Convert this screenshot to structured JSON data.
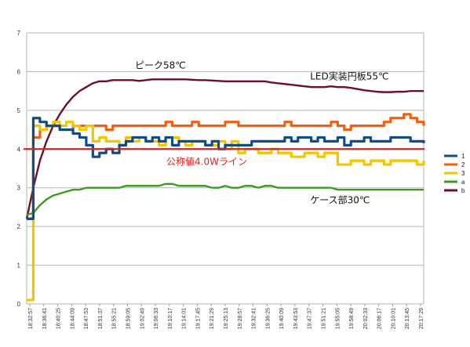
{
  "chart_data": {
    "type": "line",
    "title": "",
    "xlabel": "",
    "ylabel": "",
    "ylim": [
      0,
      7
    ],
    "yticks": [
      "0",
      "1",
      "2",
      "3",
      "4",
      "5",
      "6",
      "7"
    ],
    "grid": true,
    "legend_position": "right",
    "x_tick_labels": [
      "18:32:57",
      "18:36:41",
      "18:40:25",
      "18:44:09",
      "18:47:53",
      "18:51:37",
      "18:55:21",
      "18:59:05",
      "19:02:49",
      "19:06:33",
      "19:10:17",
      "19:14:01",
      "19:17:45",
      "19:21:29",
      "19:25:13",
      "19:28:57",
      "19:32:41",
      "19:36:25",
      "19:40:09",
      "19:43:53",
      "19:47:37",
      "19:51:21",
      "19:55:05",
      "19:58:49",
      "20:02:33",
      "20:06:17",
      "20:10:01",
      "20:13:45",
      "20:17:29"
    ],
    "series": [
      {
        "name": "1",
        "color": "#0e4c8a",
        "values": [
          2.2,
          4.8,
          4.7,
          4.6,
          4.6,
          4.5,
          4.5,
          4.4,
          4.3,
          4.1,
          3.8,
          3.9,
          4.0,
          3.9,
          4.1,
          4.2,
          4.3,
          4.3,
          4.2,
          4.3,
          4.2,
          4.3,
          4.1,
          4.2,
          4.2,
          4.2,
          4.2,
          4.1,
          4.2,
          4.0,
          4.1,
          4.1,
          4.1,
          4.1,
          4.2,
          4.2,
          4.2,
          4.2,
          4.2,
          4.3,
          4.2,
          4.3,
          4.3,
          4.2,
          4.3,
          4.2,
          4.2,
          4.3,
          4.1,
          4.2,
          4.2,
          4.3,
          4.2,
          4.2,
          4.2,
          4.3,
          4.3,
          4.3,
          4.2,
          4.2,
          4.15
        ]
      },
      {
        "name": "2",
        "color": "#f06010",
        "values": [
          2.2,
          4.3,
          4.5,
          4.6,
          4.6,
          4.5,
          4.5,
          4.6,
          4.6,
          4.6,
          4.6,
          4.6,
          4.5,
          4.6,
          4.6,
          4.6,
          4.6,
          4.6,
          4.6,
          4.6,
          4.6,
          4.7,
          4.6,
          4.6,
          4.6,
          4.7,
          4.6,
          4.6,
          4.6,
          4.6,
          4.7,
          4.7,
          4.6,
          4.6,
          4.6,
          4.6,
          4.6,
          4.6,
          4.6,
          4.7,
          4.6,
          4.6,
          4.6,
          4.6,
          4.6,
          4.6,
          4.7,
          4.6,
          4.5,
          4.6,
          4.6,
          4.6,
          4.6,
          4.6,
          4.7,
          4.8,
          4.8,
          4.9,
          4.8,
          4.7,
          4.6
        ]
      },
      {
        "name": "3",
        "color": "#f4c400",
        "values": [
          0.1,
          4.6,
          4.5,
          4.6,
          4.7,
          4.6,
          4.7,
          4.6,
          4.5,
          4.6,
          4.2,
          4.3,
          4.2,
          4.2,
          4.1,
          4.3,
          4.2,
          4.3,
          4.2,
          4.2,
          4.1,
          4.3,
          4.3,
          4.2,
          4.1,
          4.2,
          4.2,
          4.1,
          4.1,
          4.2,
          4.0,
          4.2,
          3.9,
          4.0,
          4.0,
          3.9,
          3.9,
          4.0,
          3.9,
          3.9,
          3.8,
          3.8,
          3.9,
          3.9,
          3.8,
          3.9,
          3.9,
          3.6,
          3.6,
          3.7,
          3.7,
          3.6,
          3.7,
          3.7,
          3.6,
          3.7,
          3.7,
          3.7,
          3.7,
          3.6,
          3.7
        ]
      },
      {
        "name": "a",
        "color": "#3f9a24",
        "values": [
          2.3,
          2.35,
          2.55,
          2.7,
          2.8,
          2.85,
          2.9,
          2.95,
          2.95,
          3.0,
          3.0,
          3.0,
          3.0,
          3.0,
          3.0,
          3.05,
          3.05,
          3.05,
          3.05,
          3.05,
          3.05,
          3.1,
          3.1,
          3.05,
          3.05,
          3.05,
          3.05,
          3.05,
          3.0,
          3.0,
          3.05,
          3.0,
          3.0,
          3.05,
          3.05,
          3.0,
          3.05,
          3.05,
          3.0,
          3.0,
          3.0,
          3.0,
          3.0,
          3.0,
          3.0,
          3.0,
          3.0,
          2.95,
          2.95,
          2.95,
          2.95,
          2.95,
          2.95,
          2.95,
          2.95,
          2.95,
          2.95,
          2.95,
          2.95,
          2.95,
          2.95
        ]
      },
      {
        "name": "b",
        "color": "#6e0f2a",
        "values": [
          2.2,
          3.0,
          3.7,
          4.2,
          4.6,
          4.9,
          5.15,
          5.35,
          5.5,
          5.6,
          5.7,
          5.75,
          5.75,
          5.78,
          5.78,
          5.78,
          5.78,
          5.76,
          5.78,
          5.8,
          5.8,
          5.8,
          5.8,
          5.8,
          5.8,
          5.79,
          5.78,
          5.78,
          5.77,
          5.76,
          5.75,
          5.75,
          5.75,
          5.75,
          5.75,
          5.75,
          5.75,
          5.72,
          5.7,
          5.68,
          5.66,
          5.64,
          5.62,
          5.6,
          5.6,
          5.6,
          5.62,
          5.6,
          5.6,
          5.58,
          5.55,
          5.52,
          5.5,
          5.48,
          5.47,
          5.47,
          5.48,
          5.48,
          5.5,
          5.5,
          5.5
        ]
      }
    ],
    "reference_line": {
      "value": 4.0,
      "color": "#e02020",
      "label": "公称値4.0Wライン"
    },
    "annotations": [
      {
        "text": "ピーク58℃",
        "anchor_x_index": 23,
        "anchor_y": 6.08
      },
      {
        "text": "LED実装円板55℃",
        "anchor_x_index": 49,
        "anchor_y": 5.8
      },
      {
        "text": "ケース部30℃",
        "anchor_x_index": 49,
        "anchor_y": 2.6
      }
    ]
  }
}
